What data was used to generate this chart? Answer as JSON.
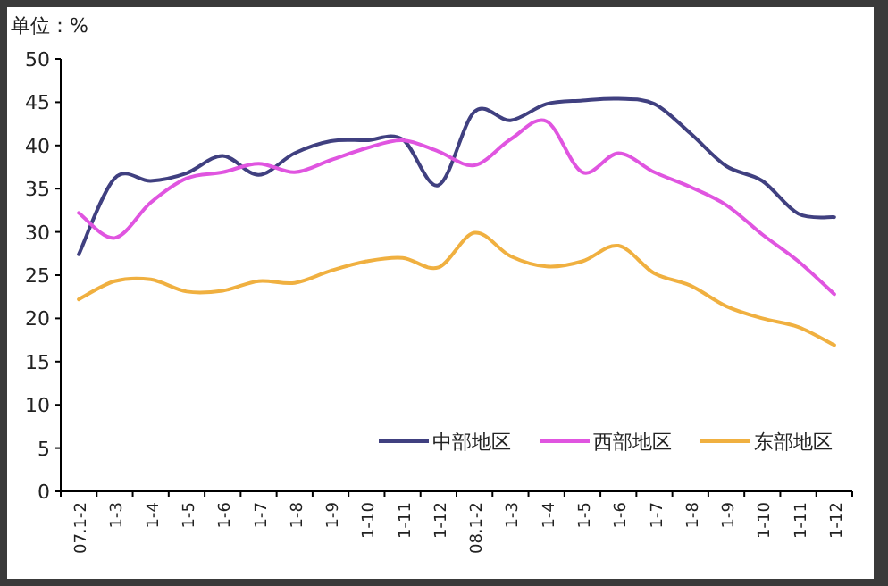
{
  "chart_data": {
    "type": "line",
    "ylabel": "单位：%",
    "categories": [
      "07.1-2",
      "1-3",
      "1-4",
      "1-5",
      "1-6",
      "1-7",
      "1-8",
      "1-9",
      "1-10",
      "1-11",
      "1-12",
      "08.1-2",
      "1-3",
      "1-4",
      "1-5",
      "1-6",
      "1-7",
      "1-8",
      "1-9",
      "1-10",
      "1-11",
      "1-12"
    ],
    "series": [
      {
        "name": "中部地区",
        "color": "#404080",
        "values": [
          27.4,
          36.2,
          35.9,
          36.8,
          38.8,
          36.6,
          39.1,
          40.5,
          40.6,
          40.7,
          35.4,
          43.9,
          42.9,
          44.8,
          45.2,
          45.4,
          44.8,
          41.4,
          37.6,
          35.9,
          32.1,
          31.7
        ]
      },
      {
        "name": "西部地区",
        "color": "#e055e0",
        "values": [
          32.2,
          29.3,
          33.4,
          36.2,
          36.9,
          37.9,
          36.9,
          38.3,
          39.7,
          40.6,
          39.3,
          37.7,
          40.7,
          42.8,
          36.9,
          39.1,
          36.9,
          35.2,
          33.1,
          29.7,
          26.6,
          22.8
        ]
      },
      {
        "name": "东部地区",
        "color": "#f0b040",
        "values": [
          22.2,
          24.3,
          24.5,
          23.1,
          23.2,
          24.3,
          24.1,
          25.5,
          26.6,
          27.0,
          25.9,
          29.9,
          27.2,
          26.0,
          26.6,
          28.4,
          25.2,
          23.8,
          21.4,
          20.0,
          19.0,
          16.9
        ]
      }
    ],
    "ylim": [
      0,
      50
    ],
    "yticks": [
      0,
      5,
      10,
      15,
      20,
      25,
      30,
      35,
      40,
      45,
      50
    ],
    "legend": "bottom right"
  }
}
